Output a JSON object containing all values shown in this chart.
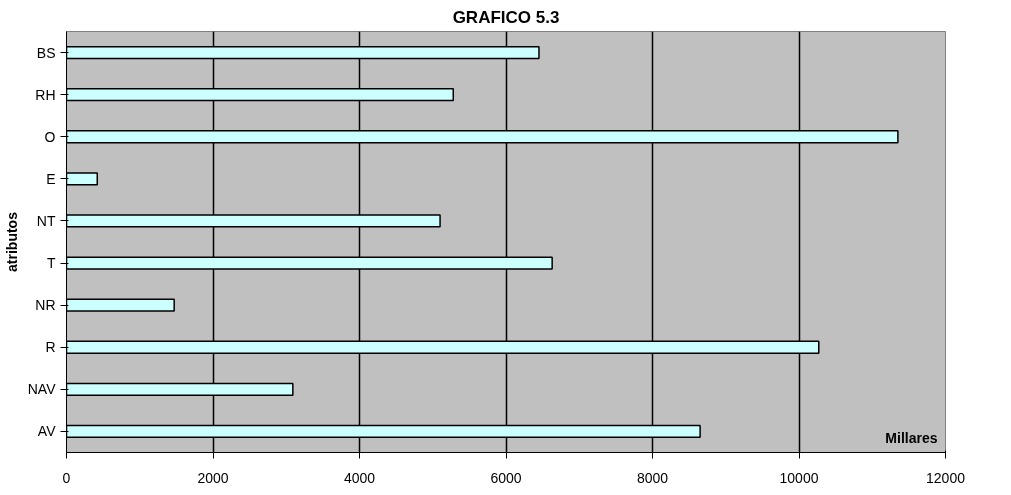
{
  "chart_data": {
    "type": "bar",
    "orientation": "horizontal",
    "title": "GRAFICO 5.3",
    "xlabel": "Millares",
    "ylabel": "atributos",
    "categories": [
      "BS",
      "RH",
      "O",
      "E",
      "NT",
      "T",
      "NR",
      "R",
      "NAV",
      "AV"
    ],
    "values": [
      6450,
      5280,
      11350,
      420,
      5100,
      6630,
      1470,
      10270,
      3090,
      8650
    ],
    "color": "#ccffff",
    "xlim": [
      0,
      12000
    ],
    "xticks": [
      0,
      2000,
      4000,
      6000,
      8000,
      10000,
      12000
    ],
    "grid": "x"
  }
}
